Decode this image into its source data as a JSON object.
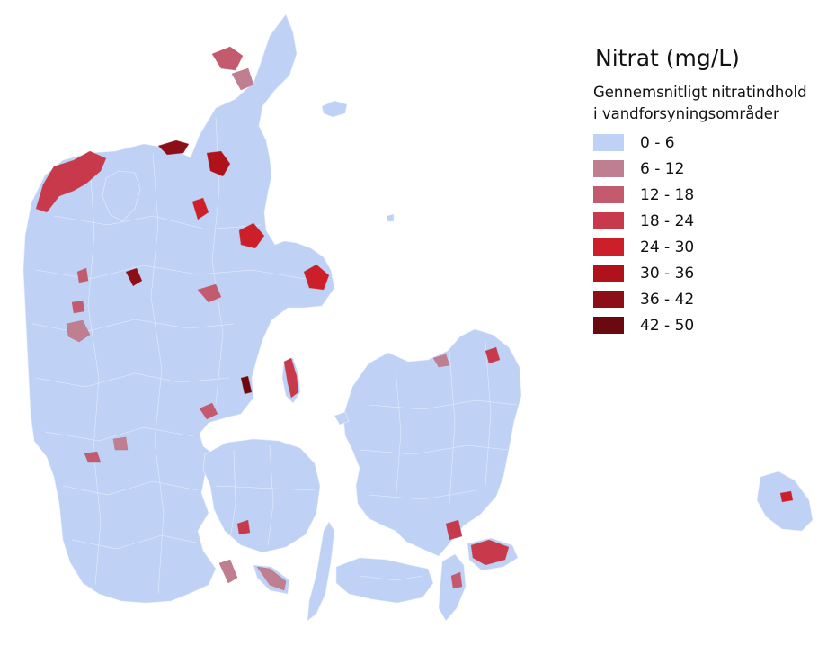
{
  "legend": {
    "title": "Nitrat (mg/L)",
    "subtitle_line1": "Gennemsnitligt nitratindhold",
    "subtitle_line2": "i vandforsyningsområder",
    "classes": [
      {
        "label": "0 - 6",
        "color": "#bfd2f5"
      },
      {
        "label": "6 - 12",
        "color": "#c07f90"
      },
      {
        "label": "12 - 18",
        "color": "#c45a6d"
      },
      {
        "label": "18 - 24",
        "color": "#c8394b"
      },
      {
        "label": "24 - 30",
        "color": "#cc1f2a"
      },
      {
        "label": "30 - 36",
        "color": "#b0121b"
      },
      {
        "label": "36 - 42",
        "color": "#8c0e16"
      },
      {
        "label": "42 - 50",
        "color": "#6a0a0f"
      }
    ]
  }
}
